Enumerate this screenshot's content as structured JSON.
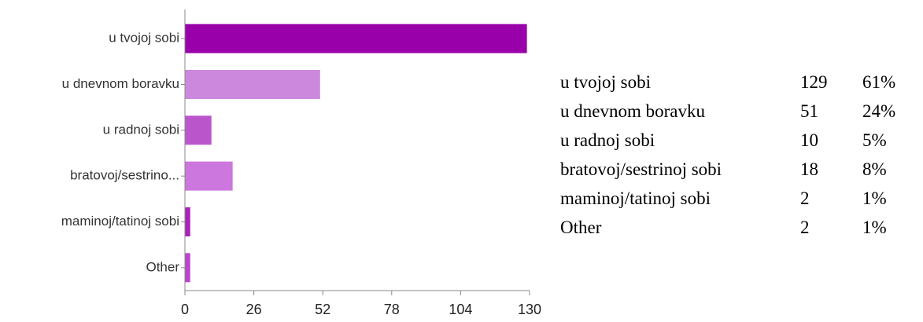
{
  "chart_data": {
    "type": "bar",
    "orientation": "horizontal",
    "categories": [
      "u tvojoj sobi",
      "u dnevnom boravku",
      "u radnoj sobi",
      "bratovoj/sestrino...",
      "maminoj/tatinoj sobi",
      "Other"
    ],
    "values": [
      129,
      51,
      10,
      18,
      2,
      2
    ],
    "colors": [
      "#9900aa",
      "#cc88dd",
      "#bb55cc",
      "#cc77dd",
      "#aa22bb",
      "#bb44cc"
    ],
    "xticks": [
      "0",
      "26",
      "52",
      "78",
      "104",
      "130"
    ],
    "xlim": [
      0,
      130
    ],
    "grid": false,
    "axis_color": "#888888"
  },
  "summary_table": {
    "rows": [
      {
        "label": "u tvojoj sobi",
        "count": "129",
        "percent": "61%"
      },
      {
        "label": "u dnevnom boravku",
        "count": "51",
        "percent": "24%"
      },
      {
        "label": "u radnoj sobi",
        "count": "10",
        "percent": "5%"
      },
      {
        "label": "bratovoj/sestrinoj sobi",
        "count": "18",
        "percent": "8%"
      },
      {
        "label": "maminoj/tatinoj sobi",
        "count": "2",
        "percent": "1%"
      },
      {
        "label": "Other",
        "count": "2",
        "percent": "1%"
      }
    ]
  }
}
